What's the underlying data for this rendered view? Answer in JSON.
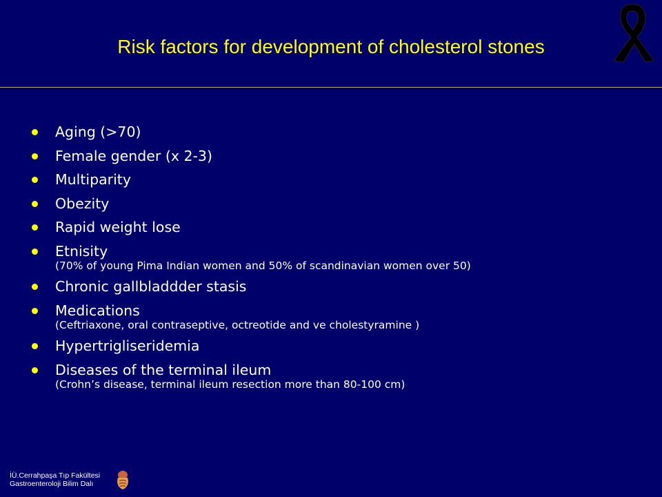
{
  "slide": {
    "title": "Risk factors for development of cholesterol stones",
    "bullets": [
      {
        "text": "Aging (>70)"
      },
      {
        "text": "Female gender (x 2-3)"
      },
      {
        "text": "Multiparity"
      },
      {
        "text": "Obezity"
      },
      {
        "text": "Rapid weight  lose"
      },
      {
        "text": "Etnisity",
        "sub": "(70% of young Pima Indian women and 50% of scandinavian women over  50)"
      },
      {
        "text": "Chronic  gallbladdder stasis"
      },
      {
        "text": "Medications",
        "sub": "(Ceftriaxone, oral  contraseptive, octreotide  and ve cholestyramine )"
      },
      {
        "text": "Hypertrigliseridemia"
      },
      {
        "text": "Diseases of the terminal ileum",
        "sub": "(Crohn’s disease,  terminal ileum resection more than 80-100 cm)"
      }
    ],
    "footer": {
      "line1": "İÜ.Cerrahpaşa Tıp Fakültesi",
      "line2": "Gastroenteroloji Bilim Dalı"
    }
  },
  "icons": {
    "ribbon": "awareness-ribbon-icon",
    "logo": "digestive-organ-logo-icon"
  },
  "colors": {
    "background": "#00006a",
    "title": "#ffff00",
    "bullet_dot": "#ffff00",
    "text": "#ffffff"
  }
}
